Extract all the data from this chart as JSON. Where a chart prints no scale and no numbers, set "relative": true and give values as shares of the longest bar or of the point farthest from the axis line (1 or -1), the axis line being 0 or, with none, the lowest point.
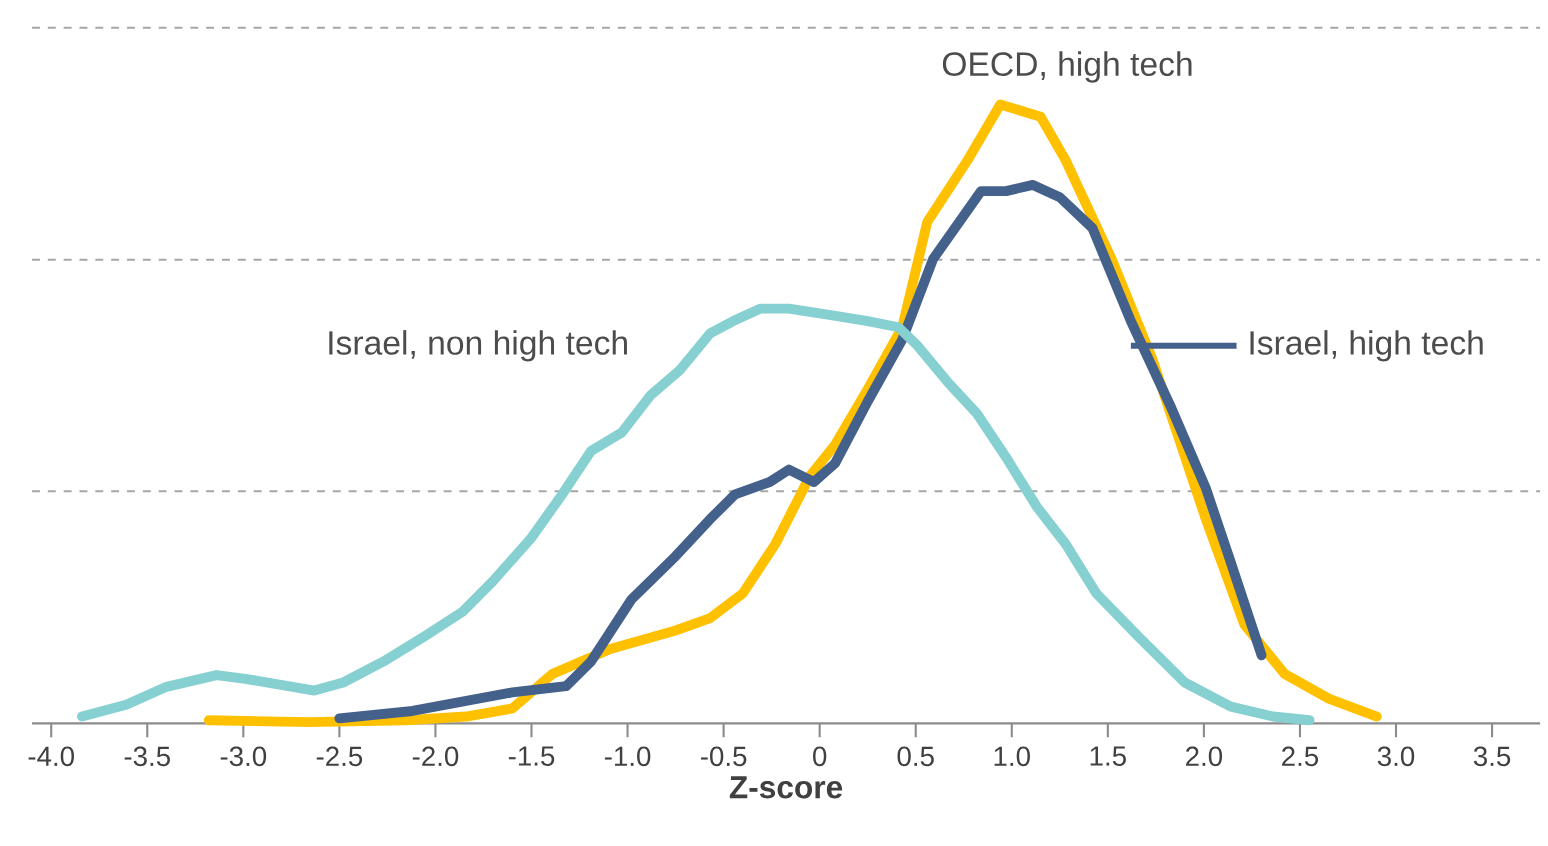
{
  "chart_data": {
    "type": "line",
    "xlabel": "Z-score",
    "relative": true,
    "ref_lines": [
      {
        "axis": "y",
        "value": 0.375,
        "line_style": "dashed",
        "color": "#a6a6a6"
      },
      {
        "axis": "y",
        "value": 0.749,
        "line_style": "dashed",
        "color": "#a6a6a6"
      },
      {
        "axis": "y",
        "value": 1.124,
        "line_style": "dashed",
        "color": "#a6a6a6"
      }
    ],
    "marker": "none",
    "line_style": "solid",
    "xlim": [
      -4.1,
      3.75
    ],
    "xticks": [
      {
        "value": -4,
        "label": "-4.0"
      },
      {
        "value": -3.5,
        "label": "-3.5"
      },
      {
        "value": -3,
        "label": "-3.0"
      },
      {
        "value": -2.5,
        "label": "-2.5"
      },
      {
        "value": -2,
        "label": "-2.0"
      },
      {
        "value": -1.5,
        "label": "-1.5"
      },
      {
        "value": -1,
        "label": "-1.0"
      },
      {
        "value": -0.5,
        "label": "-0.5"
      },
      0,
      {
        "value": 0.5,
        "label": "0.5"
      },
      {
        "value": 1,
        "label": "1.0"
      },
      {
        "value": 1.5,
        "label": "1.5"
      },
      {
        "value": 2,
        "label": "2.0"
      },
      {
        "value": 2.5,
        "label": "2.5"
      },
      {
        "value": 3,
        "label": "3.0"
      },
      {
        "value": 3.5,
        "label": "3.5"
      }
    ],
    "series": [
      {
        "name": "OECD, high tech",
        "color": "#ffc000",
        "x": [
          -3.18,
          -2.66,
          -2.15,
          -1.84,
          -1.6,
          -1.39,
          -1.09,
          -0.75,
          -0.57,
          -0.4,
          -0.23,
          -0.05,
          0.08,
          0.25,
          0.43,
          0.56,
          0.77,
          0.94,
          1.15,
          1.28,
          1.52,
          1.73,
          1.87,
          2.01,
          2.21,
          2.42,
          2.65,
          2.9
        ],
        "values": [
          0.005,
          0.002,
          0.005,
          0.011,
          0.024,
          0.08,
          0.12,
          0.15,
          0.17,
          0.21,
          0.29,
          0.4,
          0.45,
          0.54,
          0.64,
          0.81,
          0.91,
          1.0,
          0.98,
          0.91,
          0.75,
          0.59,
          0.46,
          0.33,
          0.16,
          0.08,
          0.04,
          0.011
        ]
      },
      {
        "name": "Israel, high tech",
        "color": "#44618c",
        "x": [
          -2.5,
          -2.12,
          -1.6,
          -1.32,
          -1.19,
          -0.98,
          -0.75,
          -0.57,
          -0.44,
          -0.26,
          -0.16,
          -0.03,
          0.08,
          0.25,
          0.43,
          0.59,
          0.84,
          0.97,
          1.11,
          1.25,
          1.42,
          1.62,
          1.83,
          2.01,
          2.14,
          2.3
        ],
        "values": [
          0.008,
          0.02,
          0.05,
          0.06,
          0.1,
          0.2,
          0.27,
          0.33,
          0.37,
          0.39,
          0.41,
          0.39,
          0.42,
          0.52,
          0.62,
          0.75,
          0.86,
          0.86,
          0.87,
          0.85,
          0.8,
          0.65,
          0.51,
          0.38,
          0.26,
          0.11
        ]
      },
      {
        "name": "Israel, non high tech",
        "color": "#86d0d2",
        "x": [
          -3.84,
          -3.61,
          -3.4,
          -3.14,
          -2.99,
          -2.63,
          -2.48,
          -2.27,
          -2.06,
          -1.86,
          -1.7,
          -1.5,
          -1.34,
          -1.19,
          -1.03,
          -0.88,
          -0.73,
          -0.57,
          -0.45,
          -0.31,
          -0.16,
          0.05,
          0.25,
          0.41,
          0.51,
          0.67,
          0.82,
          0.97,
          1.13,
          1.28,
          1.44,
          1.66,
          1.9,
          2.14,
          2.36,
          2.55
        ],
        "values": [
          0.011,
          0.03,
          0.059,
          0.078,
          0.072,
          0.053,
          0.066,
          0.1,
          0.14,
          0.18,
          0.23,
          0.3,
          0.37,
          0.44,
          0.47,
          0.53,
          0.57,
          0.63,
          0.65,
          0.67,
          0.67,
          0.66,
          0.65,
          0.64,
          0.61,
          0.55,
          0.5,
          0.43,
          0.35,
          0.29,
          0.21,
          0.14,
          0.066,
          0.027,
          0.011,
          0.005
        ]
      }
    ]
  }
}
